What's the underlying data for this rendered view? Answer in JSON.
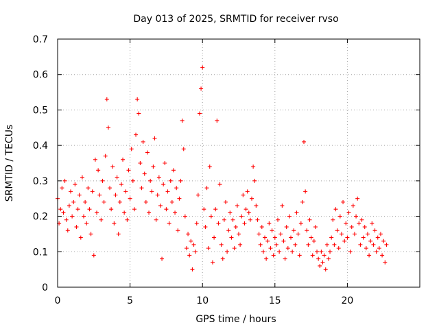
{
  "chart_data": {
    "type": "scatter",
    "title": "Day 013 of 2025, SRMTID for receiver rvso",
    "xlabel": "GPS time / hours",
    "ylabel": "SRMTID / TECUs",
    "xlim": [
      0,
      25
    ],
    "ylim": [
      0,
      0.7
    ],
    "xticks": [
      0,
      5,
      10,
      15,
      20
    ],
    "yticks": [
      0,
      0.1,
      0.2,
      0.3,
      0.4,
      0.5,
      0.6,
      0.7
    ],
    "xtick_labels": [
      "0",
      "5",
      "10",
      "15",
      "20"
    ],
    "ytick_labels": [
      "0",
      "0.1",
      "0.2",
      "0.3",
      "0.4",
      "0.5",
      "0.6",
      "0.7"
    ],
    "grid": true,
    "marker": "+",
    "color": "#ff0000",
    "series": [
      {
        "name": "SRMTID",
        "points": [
          [
            0.0,
            0.25
          ],
          [
            0.1,
            0.18
          ],
          [
            0.2,
            0.22
          ],
          [
            0.3,
            0.28
          ],
          [
            0.4,
            0.21
          ],
          [
            0.5,
            0.3
          ],
          [
            0.6,
            0.19
          ],
          [
            0.7,
            0.16
          ],
          [
            0.8,
            0.23
          ],
          [
            0.9,
            0.27
          ],
          [
            1.0,
            0.2
          ],
          [
            1.1,
            0.24
          ],
          [
            1.2,
            0.29
          ],
          [
            1.3,
            0.17
          ],
          [
            1.4,
            0.22
          ],
          [
            1.5,
            0.26
          ],
          [
            1.6,
            0.14
          ],
          [
            1.7,
            0.31
          ],
          [
            1.8,
            0.2
          ],
          [
            1.9,
            0.24
          ],
          [
            2.0,
            0.18
          ],
          [
            2.1,
            0.28
          ],
          [
            2.2,
            0.22
          ],
          [
            2.3,
            0.15
          ],
          [
            2.4,
            0.27
          ],
          [
            2.5,
            0.09
          ],
          [
            2.6,
            0.36
          ],
          [
            2.7,
            0.21
          ],
          [
            2.8,
            0.33
          ],
          [
            2.9,
            0.26
          ],
          [
            3.0,
            0.19
          ],
          [
            3.1,
            0.3
          ],
          [
            3.2,
            0.24
          ],
          [
            3.3,
            0.37
          ],
          [
            3.4,
            0.53
          ],
          [
            3.5,
            0.45
          ],
          [
            3.6,
            0.28
          ],
          [
            3.7,
            0.22
          ],
          [
            3.8,
            0.34
          ],
          [
            3.9,
            0.18
          ],
          [
            4.0,
            0.26
          ],
          [
            4.1,
            0.31
          ],
          [
            4.2,
            0.15
          ],
          [
            4.3,
            0.24
          ],
          [
            4.4,
            0.29
          ],
          [
            4.5,
            0.36
          ],
          [
            4.6,
            0.21
          ],
          [
            4.7,
            0.27
          ],
          [
            4.8,
            0.19
          ],
          [
            4.9,
            0.33
          ],
          [
            5.0,
            0.25
          ],
          [
            5.1,
            0.39
          ],
          [
            5.2,
            0.3
          ],
          [
            5.3,
            0.22
          ],
          [
            5.4,
            0.43
          ],
          [
            5.5,
            0.53
          ],
          [
            5.6,
            0.49
          ],
          [
            5.7,
            0.35
          ],
          [
            5.8,
            0.28
          ],
          [
            5.9,
            0.41
          ],
          [
            6.0,
            0.32
          ],
          [
            6.1,
            0.24
          ],
          [
            6.2,
            0.38
          ],
          [
            6.3,
            0.21
          ],
          [
            6.4,
            0.3
          ],
          [
            6.5,
            0.27
          ],
          [
            6.6,
            0.34
          ],
          [
            6.7,
            0.42
          ],
          [
            6.8,
            0.19
          ],
          [
            6.9,
            0.26
          ],
          [
            7.0,
            0.31
          ],
          [
            7.1,
            0.23
          ],
          [
            7.2,
            0.08
          ],
          [
            7.3,
            0.29
          ],
          [
            7.4,
            0.35
          ],
          [
            7.5,
            0.22
          ],
          [
            7.6,
            0.27
          ],
          [
            7.7,
            0.18
          ],
          [
            7.8,
            0.3
          ],
          [
            7.9,
            0.24
          ],
          [
            8.0,
            0.33
          ],
          [
            8.1,
            0.21
          ],
          [
            8.2,
            0.28
          ],
          [
            8.3,
            0.16
          ],
          [
            8.4,
            0.25
          ],
          [
            8.5,
            0.3
          ],
          [
            8.6,
            0.47
          ],
          [
            8.7,
            0.39
          ],
          [
            8.8,
            0.2
          ],
          [
            8.9,
            0.11
          ],
          [
            9.0,
            0.15
          ],
          [
            9.1,
            0.09
          ],
          [
            9.2,
            0.13
          ],
          [
            9.3,
            0.05
          ],
          [
            9.4,
            0.12
          ],
          [
            9.5,
            0.1
          ],
          [
            9.6,
            0.18
          ],
          [
            9.7,
            0.26
          ],
          [
            9.8,
            0.49
          ],
          [
            9.9,
            0.56
          ],
          [
            10.0,
            0.62
          ],
          [
            10.1,
            0.22
          ],
          [
            10.2,
            0.17
          ],
          [
            10.3,
            0.28
          ],
          [
            10.4,
            0.11
          ],
          [
            10.5,
            0.34
          ],
          [
            10.6,
            0.2
          ],
          [
            10.7,
            0.07
          ],
          [
            10.8,
            0.14
          ],
          [
            10.9,
            0.22
          ],
          [
            11.0,
            0.47
          ],
          [
            11.1,
            0.18
          ],
          [
            11.2,
            0.29
          ],
          [
            11.3,
            0.12
          ],
          [
            11.4,
            0.08
          ],
          [
            11.5,
            0.19
          ],
          [
            11.6,
            0.24
          ],
          [
            11.7,
            0.1
          ],
          [
            11.8,
            0.16
          ],
          [
            11.9,
            0.21
          ],
          [
            12.0,
            0.14
          ],
          [
            12.1,
            0.19
          ],
          [
            12.2,
            0.11
          ],
          [
            12.3,
            0.17
          ],
          [
            12.4,
            0.23
          ],
          [
            12.5,
            0.15
          ],
          [
            12.6,
            0.12
          ],
          [
            12.7,
            0.2
          ],
          [
            12.8,
            0.26
          ],
          [
            12.9,
            0.18
          ],
          [
            13.0,
            0.22
          ],
          [
            13.1,
            0.27
          ],
          [
            13.2,
            0.21
          ],
          [
            13.3,
            0.19
          ],
          [
            13.4,
            0.25
          ],
          [
            13.5,
            0.34
          ],
          [
            13.6,
            0.3
          ],
          [
            13.7,
            0.23
          ],
          [
            13.8,
            0.19
          ],
          [
            13.9,
            0.15
          ],
          [
            14.0,
            0.12
          ],
          [
            14.1,
            0.17
          ],
          [
            14.2,
            0.1
          ],
          [
            14.3,
            0.14
          ],
          [
            14.4,
            0.08
          ],
          [
            14.5,
            0.13
          ],
          [
            14.6,
            0.18
          ],
          [
            14.7,
            0.11
          ],
          [
            14.8,
            0.16
          ],
          [
            14.9,
            0.09
          ],
          [
            15.0,
            0.14
          ],
          [
            15.1,
            0.12
          ],
          [
            15.2,
            0.19
          ],
          [
            15.3,
            0.1
          ],
          [
            15.4,
            0.15
          ],
          [
            15.5,
            0.23
          ],
          [
            15.6,
            0.13
          ],
          [
            15.7,
            0.08
          ],
          [
            15.8,
            0.17
          ],
          [
            15.9,
            0.11
          ],
          [
            16.0,
            0.2
          ],
          [
            16.1,
            0.14
          ],
          [
            16.2,
            0.1
          ],
          [
            16.3,
            0.16
          ],
          [
            16.4,
            0.12
          ],
          [
            16.5,
            0.21
          ],
          [
            16.6,
            0.15
          ],
          [
            16.7,
            0.09
          ],
          [
            16.8,
            0.18
          ],
          [
            16.9,
            0.24
          ],
          [
            17.0,
            0.41
          ],
          [
            17.1,
            0.27
          ],
          [
            17.2,
            0.16
          ],
          [
            17.3,
            0.12
          ],
          [
            17.4,
            0.19
          ],
          [
            17.5,
            0.14
          ],
          [
            17.6,
            0.09
          ],
          [
            17.7,
            0.13
          ],
          [
            17.8,
            0.17
          ],
          [
            17.9,
            0.1
          ],
          [
            18.0,
            0.08
          ],
          [
            18.1,
            0.06
          ],
          [
            18.2,
            0.1
          ],
          [
            18.3,
            0.07
          ],
          [
            18.4,
            0.09
          ],
          [
            18.5,
            0.05
          ],
          [
            18.6,
            0.12
          ],
          [
            18.7,
            0.08
          ],
          [
            18.8,
            0.1
          ],
          [
            18.9,
            0.14
          ],
          [
            19.0,
            0.19
          ],
          [
            19.1,
            0.12
          ],
          [
            19.2,
            0.22
          ],
          [
            19.3,
            0.16
          ],
          [
            19.4,
            0.11
          ],
          [
            19.5,
            0.2
          ],
          [
            19.6,
            0.15
          ],
          [
            19.7,
            0.24
          ],
          [
            19.8,
            0.13
          ],
          [
            19.9,
            0.18
          ],
          [
            20.0,
            0.14
          ],
          [
            20.1,
            0.21
          ],
          [
            20.2,
            0.1
          ],
          [
            20.3,
            0.17
          ],
          [
            20.4,
            0.23
          ],
          [
            20.5,
            0.15
          ],
          [
            20.6,
            0.2
          ],
          [
            20.7,
            0.25
          ],
          [
            20.8,
            0.18
          ],
          [
            20.9,
            0.12
          ],
          [
            21.0,
            0.19
          ],
          [
            21.1,
            0.14
          ],
          [
            21.2,
            0.17
          ],
          [
            21.3,
            0.11
          ],
          [
            21.4,
            0.15
          ],
          [
            21.5,
            0.09
          ],
          [
            21.6,
            0.13
          ],
          [
            21.7,
            0.18
          ],
          [
            21.8,
            0.12
          ],
          [
            21.9,
            0.16
          ],
          [
            22.0,
            0.1
          ],
          [
            22.1,
            0.14
          ],
          [
            22.2,
            0.11
          ],
          [
            22.3,
            0.15
          ],
          [
            22.4,
            0.09
          ],
          [
            22.5,
            0.13
          ],
          [
            22.6,
            0.07
          ],
          [
            22.7,
            0.12
          ]
        ]
      }
    ]
  }
}
